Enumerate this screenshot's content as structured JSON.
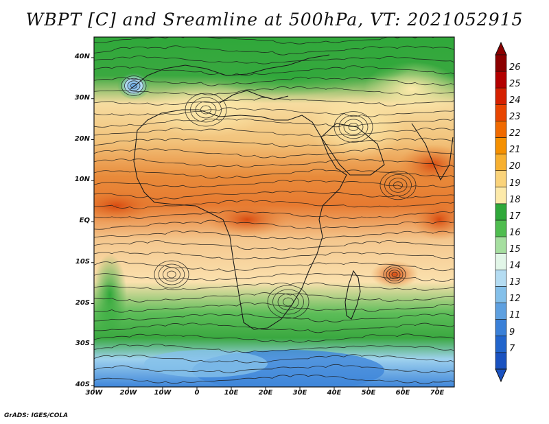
{
  "title": "WBPT [C] and Sreamline at 500hPa, VT: 2021052915",
  "credit": "GrADS: IGES/COLA",
  "map": {
    "lat_labels": [
      "40N",
      "30N",
      "20N",
      "10N",
      "EQ",
      "10S",
      "20S",
      "30S",
      "40S"
    ],
    "lon_labels": [
      "30W",
      "20W",
      "10W",
      "0",
      "10E",
      "20E",
      "30E",
      "40E",
      "50E",
      "60E",
      "70E"
    ]
  },
  "colorbar": {
    "labels": [
      "26",
      "25",
      "24",
      "23",
      "22",
      "21",
      "20",
      "19",
      "18",
      "17",
      "16",
      "15",
      "14",
      "13",
      "12",
      "11",
      "9",
      "7"
    ],
    "colors": [
      "#8b0000",
      "#b30000",
      "#d52000",
      "#e84500",
      "#f06a00",
      "#f59000",
      "#f7b030",
      "#fad37a",
      "#fdeaaa",
      "#2fa83a",
      "#4fbd4f",
      "#a6dfa0",
      "#e2f6e8",
      "#b4dcf2",
      "#84c0ea",
      "#5ea0e0",
      "#3a80d8",
      "#2265cc",
      "#1a52c0"
    ]
  }
}
